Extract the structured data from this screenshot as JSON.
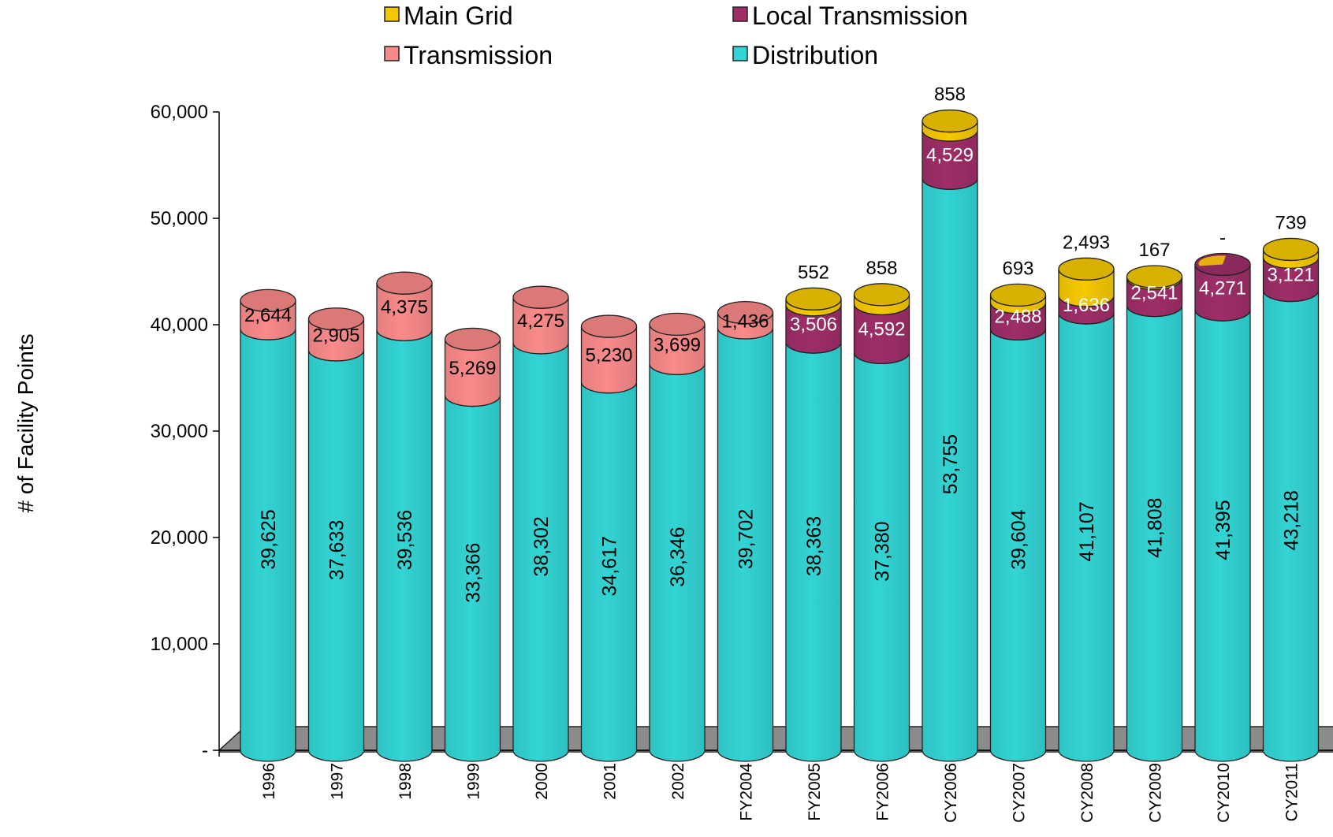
{
  "chart_data": {
    "type": "bar",
    "stacked": true,
    "style": "3d-cylinder",
    "title": "",
    "xlabel": "",
    "ylabel": "# of Facility Points",
    "ylim": [
      0,
      60000
    ],
    "yticks": [
      0,
      10000,
      20000,
      30000,
      40000,
      50000,
      60000
    ],
    "ytick_labels": [
      "-",
      "10,000",
      "20,000",
      "30,000",
      "40,000",
      "50,000",
      "60,000"
    ],
    "grid": false,
    "legend_position": "top",
    "categories": [
      "1996",
      "1997",
      "1998",
      "1999",
      "2000",
      "2001",
      "2002",
      "FY2004",
      "FY2005",
      "FY2006",
      "CY2006",
      "CY2007",
      "CY2008",
      "CY2009",
      "CY2010",
      "CY2011"
    ],
    "series": [
      {
        "name": "Distribution",
        "color": "#33D4D4",
        "values": [
          39625,
          37633,
          39536,
          33366,
          38302,
          34617,
          36346,
          39702,
          38363,
          37380,
          53755,
          39604,
          41107,
          41808,
          41395,
          43218
        ],
        "labels": [
          "39,625",
          "37,633",
          "39,536",
          "33,366",
          "38,302",
          "34,617",
          "36,346",
          "39,702",
          "38,363",
          "37,380",
          "53,755",
          "39,604",
          "41,107",
          "41,808",
          "41,395",
          "43,218"
        ]
      },
      {
        "name": "Transmission",
        "color": "#F98A8A",
        "values": [
          2644,
          2905,
          4375,
          5269,
          4275,
          5230,
          3699,
          1436,
          null,
          null,
          null,
          null,
          null,
          null,
          null,
          null
        ],
        "labels": [
          "2,644",
          "2,905",
          "4,375",
          "5,269",
          "4,275",
          "5,230",
          "3,699",
          "1,436",
          null,
          null,
          null,
          null,
          null,
          null,
          null,
          null
        ]
      },
      {
        "name": "Local Transmission",
        "color": "#9E2E68",
        "values": [
          null,
          null,
          null,
          null,
          null,
          null,
          null,
          null,
          3506,
          4592,
          4529,
          2488,
          1636,
          2541,
          4271,
          3121
        ],
        "labels": [
          null,
          null,
          null,
          null,
          null,
          null,
          null,
          null,
          "3,506",
          "4,592",
          "4,529",
          "2,488",
          "1,636",
          "2,541",
          "4,271",
          "3,121"
        ]
      },
      {
        "name": "Main Grid",
        "color": "#F4C800",
        "values": [
          null,
          null,
          null,
          null,
          null,
          null,
          null,
          null,
          552,
          858,
          858,
          693,
          2493,
          167,
          0,
          739
        ],
        "labels": [
          null,
          null,
          null,
          null,
          null,
          null,
          null,
          null,
          "552",
          "858",
          "858",
          "693",
          "2,493",
          "167",
          "-",
          "739"
        ]
      }
    ],
    "legend_order": [
      "Main Grid",
      "Local Transmission",
      "Transmission",
      "Distribution"
    ]
  }
}
